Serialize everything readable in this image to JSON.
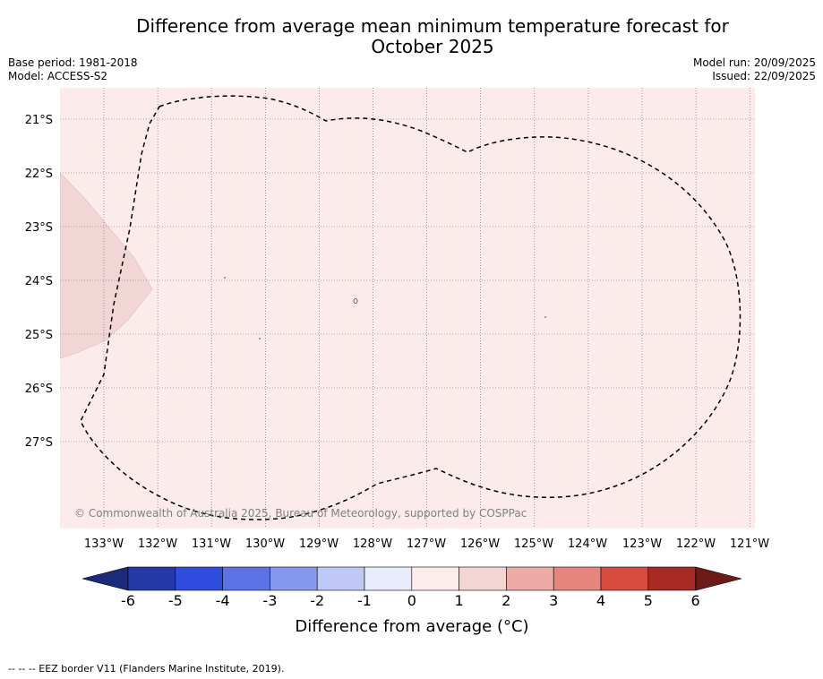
{
  "title_line1": "Difference from average mean minimum temperature forecast for",
  "title_line2": "October 2025",
  "base_period": "Base period: 1981-2018",
  "model": "Model: ACCESS-S2",
  "model_run": "Model run: 20/09/2025",
  "issued": "Issued: 22/09/2025",
  "copyright": "© Commonwealth of Australia 2025, Bureau of Meteorology, supported by COSPPac",
  "footnote": "-- -- -- EEZ border V11 (Flanders Marine Institute, 2019).",
  "map": {
    "lon_labels": [
      "133°W",
      "132°W",
      "131°W",
      "130°W",
      "129°W",
      "128°W",
      "127°W",
      "126°W",
      "125°W",
      "124°W",
      "123°W",
      "122°W",
      "121°W"
    ],
    "lat_labels": [
      "21°S",
      "22°S",
      "23°S",
      "24°S",
      "25°S",
      "26°S",
      "27°S"
    ],
    "background_color": "#fbeceb",
    "warm_patch_color": "#f2d6d5"
  },
  "colorbar": {
    "label": "Difference from average (°C)",
    "ticks": [
      "-6",
      "-5",
      "-4",
      "-3",
      "-2",
      "-1",
      "0",
      "1",
      "2",
      "3",
      "4",
      "5",
      "6"
    ],
    "low_extend_color": "#1b2a7b",
    "high_extend_color": "#6e1b17",
    "colors": [
      "#2539a8",
      "#2f4ee0",
      "#5b73e6",
      "#8597ee",
      "#c0c8f5",
      "#e8ebfb",
      "#fcecea",
      "#f3d5d3",
      "#ecaba7",
      "#e7867f",
      "#d94a3f",
      "#a82a22"
    ]
  }
}
